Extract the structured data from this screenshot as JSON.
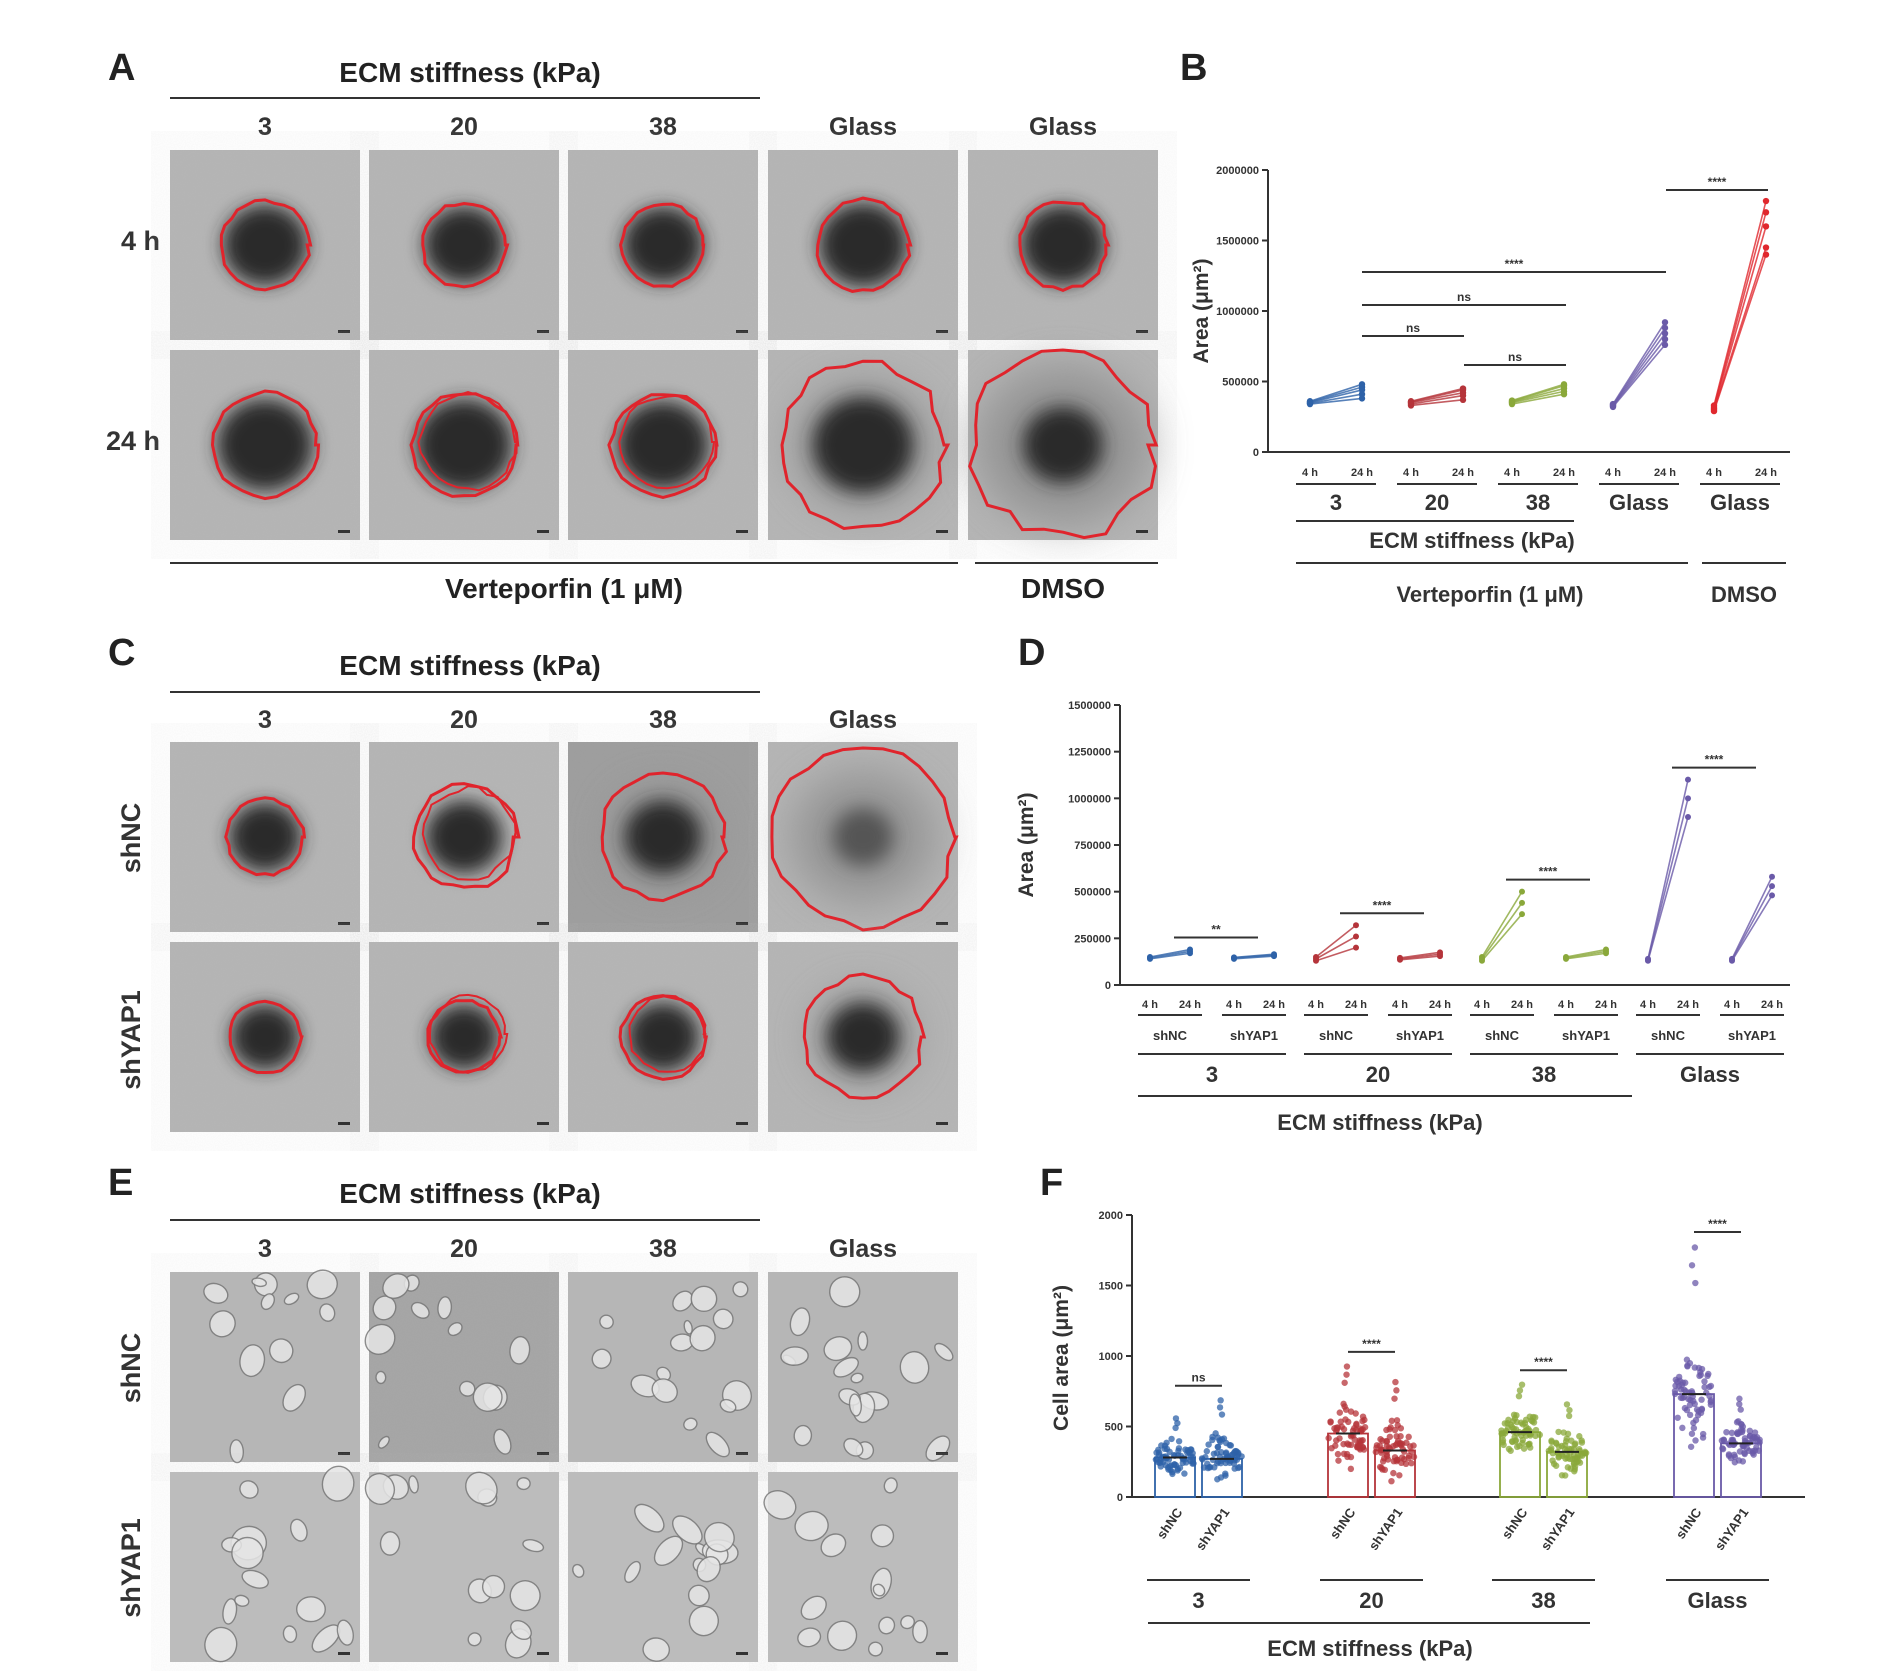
{
  "panels": {
    "A": {
      "letter": "A",
      "header": "ECM stiffness (kPa)",
      "columns": [
        "3",
        "20",
        "38",
        "Glass",
        "Glass"
      ],
      "rows": [
        "4 h",
        "24 h"
      ],
      "treatments": [
        "Verteporfin (1 μM)",
        "DMSO"
      ]
    },
    "C": {
      "letter": "C",
      "header": "ECM stiffness (kPa)",
      "columns": [
        "3",
        "20",
        "38",
        "Glass"
      ],
      "rows": [
        "shNC",
        "shYAP1"
      ]
    },
    "E": {
      "letter": "E",
      "header": "ECM stiffness (kPa)",
      "columns": [
        "3",
        "20",
        "38",
        "Glass"
      ],
      "rows": [
        "shNC",
        "shYAP1"
      ]
    },
    "B": {
      "letter": "B"
    },
    "D": {
      "letter": "D"
    },
    "F": {
      "letter": "F"
    }
  },
  "chart_data": [
    {
      "id": "B",
      "type": "line",
      "ylabel": "Area (μm²)",
      "yticks": [
        "0",
        "500000",
        "1000000",
        "1500000",
        "2000000"
      ],
      "ylim": [
        0,
        2000000
      ],
      "time_labels": [
        "4 h",
        "24 h"
      ],
      "groups": [
        "3",
        "20",
        "38",
        "Glass",
        "Glass"
      ],
      "group_label": "ECM stiffness (kPa)",
      "treatments": [
        "Verteporfin (1 μM)",
        "DMSO"
      ],
      "colors": [
        "#2e62a8",
        "#b5343a",
        "#8aa83a",
        "#6a5aa8",
        "#e0282e"
      ],
      "series": [
        {
          "group": "3",
          "values_4h": [
            340000,
            345000,
            350000,
            355000,
            360000
          ],
          "values_24h": [
            380000,
            410000,
            440000,
            460000,
            480000
          ]
        },
        {
          "group": "20",
          "values_4h": [
            330000,
            340000,
            350000,
            355000,
            360000
          ],
          "values_24h": [
            370000,
            400000,
            420000,
            440000,
            450000
          ]
        },
        {
          "group": "38",
          "values_4h": [
            340000,
            350000,
            355000,
            360000,
            365000
          ],
          "values_24h": [
            410000,
            430000,
            450000,
            470000,
            480000
          ]
        },
        {
          "group": "Glass",
          "values_4h": [
            320000,
            325000,
            330000,
            335000,
            340000
          ],
          "values_24h": [
            760000,
            800000,
            840000,
            880000,
            920000
          ]
        },
        {
          "group": "Glass",
          "values_4h": [
            290000,
            300000,
            310000,
            320000,
            330000
          ],
          "values_24h": [
            1400000,
            1450000,
            1600000,
            1700000,
            1780000
          ]
        }
      ],
      "significance": [
        "ns",
        "ns",
        "ns",
        "****",
        "****"
      ]
    },
    {
      "id": "D",
      "type": "line",
      "ylabel": "Area (μm²)",
      "yticks": [
        "0",
        "250000",
        "500000",
        "750000",
        "1000000",
        "1250000",
        "1500000"
      ],
      "ylim": [
        0,
        1500000
      ],
      "time_labels": [
        "4 h",
        "24 h"
      ],
      "subgroups": [
        "shNC",
        "shYAP1"
      ],
      "groups": [
        "3",
        "20",
        "38",
        "Glass"
      ],
      "group_label": "ECM stiffness (kPa)",
      "colors": [
        "#2e62a8",
        "#b5343a",
        "#8aa83a",
        "#6a5aa8"
      ],
      "series": [
        {
          "group": "3",
          "shNC_4h": [
            140000,
            145000,
            150000
          ],
          "shNC_24h": [
            170000,
            180000,
            190000
          ],
          "shYAP1_4h": [
            140000,
            145000,
            148000
          ],
          "shYAP1_24h": [
            155000,
            160000,
            165000
          ]
        },
        {
          "group": "20",
          "shNC_4h": [
            130000,
            140000,
            150000
          ],
          "shNC_24h": [
            200000,
            260000,
            320000
          ],
          "shYAP1_4h": [
            135000,
            140000,
            145000
          ],
          "shYAP1_24h": [
            155000,
            165000,
            175000
          ]
        },
        {
          "group": "38",
          "shNC_4h": [
            130000,
            140000,
            150000
          ],
          "shNC_24h": [
            380000,
            440000,
            500000
          ],
          "shYAP1_4h": [
            140000,
            145000,
            150000
          ],
          "shYAP1_24h": [
            170000,
            180000,
            190000
          ]
        },
        {
          "group": "Glass",
          "shNC_4h": [
            130000,
            135000,
            140000
          ],
          "shNC_24h": [
            900000,
            1000000,
            1100000
          ],
          "shYAP1_4h": [
            130000,
            135000,
            140000
          ],
          "shYAP1_24h": [
            480000,
            530000,
            580000
          ]
        }
      ],
      "significance": [
        "**",
        "****",
        "****",
        "****"
      ]
    },
    {
      "id": "F",
      "type": "scatter",
      "ylabel": "Cell area (μm²)",
      "yticks": [
        "0",
        "500",
        "1000",
        "1500",
        "2000"
      ],
      "ylim": [
        0,
        2000
      ],
      "categories": [
        "shNC",
        "shYAP1",
        "shNC",
        "shYAP1",
        "shNC",
        "shYAP1",
        "shNC",
        "shYAP1"
      ],
      "groups": [
        "3",
        "20",
        "38",
        "Glass"
      ],
      "group_label": "ECM stiffness (kPa)",
      "colors": [
        "#2e62a8",
        "#b5343a",
        "#8aa83a",
        "#6a5aa8"
      ],
      "means": [
        280,
        270,
        450,
        330,
        460,
        320,
        730,
        380
      ],
      "sd": [
        90,
        110,
        150,
        130,
        120,
        100,
        230,
        90
      ],
      "max": [
        560,
        690,
        930,
        820,
        800,
        660,
        1780,
        700
      ],
      "significance": [
        "ns",
        "****",
        "****",
        "****"
      ]
    }
  ]
}
